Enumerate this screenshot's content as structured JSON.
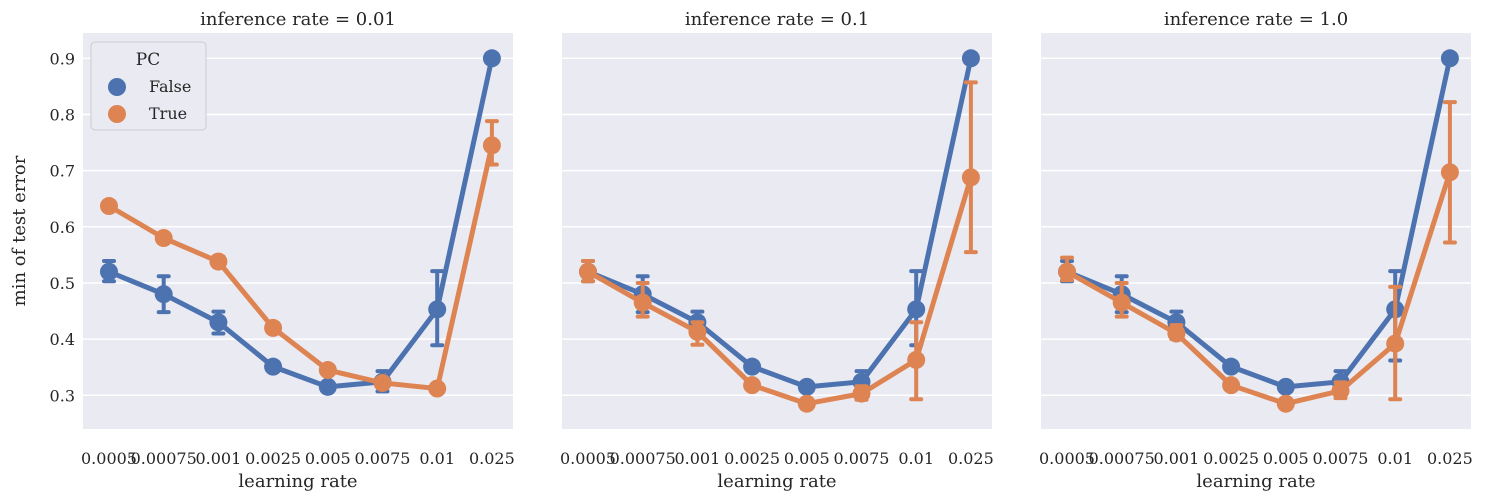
{
  "chart_data": {
    "type": "line",
    "ylabel": "min of test error",
    "xlabel": "learning rate",
    "categories": [
      "0.0005",
      "0.00075",
      "0.001",
      "0.0025",
      "0.005",
      "0.0075",
      "0.01",
      "0.025"
    ],
    "yticks": [
      "0.3",
      "0.4",
      "0.5",
      "0.6",
      "0.7",
      "0.8",
      "0.9"
    ],
    "ylim": [
      0.24,
      0.945
    ],
    "grid": true,
    "legend": {
      "title": "PC",
      "placement": "upper-left",
      "entries": [
        "False",
        "True"
      ]
    },
    "colors": {
      "False": "#4c72b0",
      "True": "#dd8452",
      "panel_bg": "#eaeaf2"
    },
    "panels": [
      {
        "title": "inference rate = 0.01",
        "series": [
          {
            "name": "False",
            "values": [
              0.52,
              0.48,
              0.43,
              0.351,
              0.315,
              0.324,
              0.453,
              0.9
            ],
            "err_low": [
              0.503,
              0.448,
              0.41,
              null,
              null,
              0.307,
              0.389,
              null
            ],
            "err_high": [
              0.539,
              0.512,
              0.449,
              null,
              null,
              0.343,
              0.521,
              null
            ]
          },
          {
            "name": "True",
            "values": [
              0.637,
              0.58,
              0.538,
              0.42,
              0.345,
              0.322,
              0.312,
              0.745
            ],
            "err_low": [
              0.631,
              null,
              0.53,
              null,
              null,
              0.315,
              0.306,
              0.711
            ],
            "err_high": [
              0.643,
              null,
              0.547,
              null,
              null,
              0.329,
              0.318,
              0.788
            ]
          }
        ]
      },
      {
        "title": "inference rate = 0.1",
        "series": [
          {
            "name": "False",
            "values": [
              0.52,
              0.48,
              0.43,
              0.351,
              0.315,
              0.324,
              0.453,
              0.9
            ],
            "err_low": [
              0.503,
              0.448,
              0.41,
              null,
              null,
              0.307,
              0.389,
              null
            ],
            "err_high": [
              0.539,
              0.512,
              0.449,
              null,
              null,
              0.343,
              0.521,
              null
            ]
          },
          {
            "name": "True",
            "values": [
              0.52,
              0.465,
              0.413,
              0.318,
              0.285,
              0.303,
              0.363,
              0.688
            ],
            "err_low": [
              0.503,
              0.44,
              0.39,
              0.312,
              0.278,
              0.292,
              0.293,
              0.555
            ],
            "err_high": [
              0.539,
              0.5,
              0.43,
              0.325,
              0.292,
              0.316,
              0.43,
              0.857
            ]
          }
        ]
      },
      {
        "title": "inference rate = 1.0",
        "series": [
          {
            "name": "False",
            "values": [
              0.52,
              0.48,
              0.43,
              0.351,
              0.315,
              0.324,
              0.453,
              0.9
            ],
            "err_low": [
              0.503,
              0.448,
              0.41,
              null,
              null,
              0.307,
              0.362,
              null
            ],
            "err_high": [
              0.539,
              0.512,
              0.449,
              null,
              null,
              0.343,
              0.521,
              null
            ]
          },
          {
            "name": "True",
            "values": [
              0.52,
              0.465,
              0.41,
              0.318,
              0.285,
              0.308,
              0.392,
              0.697
            ],
            "err_low": [
              0.505,
              0.44,
              0.4,
              0.312,
              0.279,
              0.295,
              0.293,
              0.572
            ],
            "err_high": [
              0.545,
              0.5,
              0.425,
              0.325,
              0.292,
              0.323,
              0.493,
              0.822
            ]
          }
        ]
      }
    ]
  }
}
